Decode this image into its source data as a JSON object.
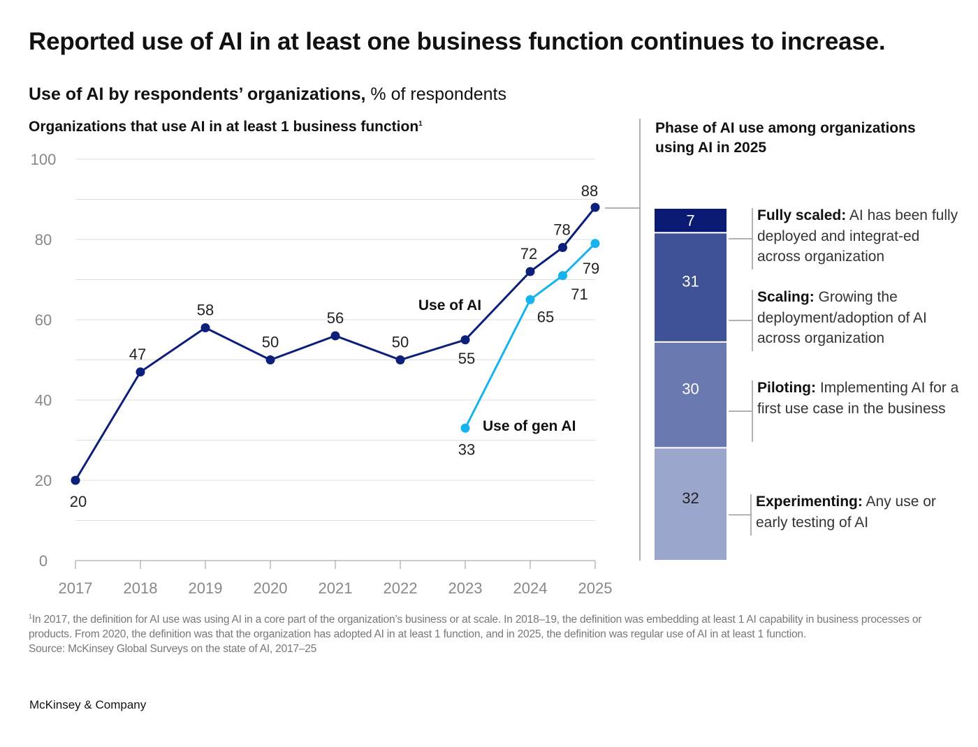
{
  "title": "Reported use of AI in at least one business function continues to increase.",
  "subtitle": {
    "bold": "Use of AI by respondents’ organizations,",
    "regular": " % of respondents"
  },
  "footnote": {
    "marker": "1",
    "text": "In 2017, the definition for AI use was using AI in a core part of the organization’s business or at scale. In 2018–19, the definition was embedding at least 1 AI capability in business processes or products. From 2020, the definition was that the organization has adopted AI in at least 1 function, and in 2025, the definition was regular use of AI in at least 1 function.",
    "source": "Source: McKinsey Global Surveys on the state of AI, 2017–25"
  },
  "brand": "McKinsey & Company",
  "colors": {
    "use_of_ai": "#0c1f7a",
    "use_of_gen_ai": "#16b4ee",
    "grid": "#dddddd"
  },
  "chart_data": [
    {
      "type": "line",
      "title": "Organizations that use AI in at least 1 business function",
      "title_marker": "1",
      "ylim": [
        0,
        100
      ],
      "yticks": [
        "0",
        "20",
        "40",
        "60",
        "80",
        "100"
      ],
      "xticks": [
        "2017",
        "2018",
        "2019",
        "2020",
        "2021",
        "2022",
        "2023",
        "2024",
        "2025"
      ],
      "grid": true,
      "series": [
        {
          "name": "Use of AI",
          "x": [
            2017,
            2018,
            2019,
            2020,
            2021,
            2022,
            2023,
            2024,
            2024.5,
            2025
          ],
          "values": [
            20,
            47,
            58,
            50,
            56,
            50,
            55,
            72,
            78,
            88
          ]
        },
        {
          "name": "Use of gen AI",
          "x": [
            2023,
            2024,
            2024.5,
            2025
          ],
          "values": [
            33,
            65,
            71,
            79
          ]
        }
      ]
    },
    {
      "type": "bar",
      "stacked": true,
      "title": "Phase of AI use among organizations using AI in 2025",
      "segments": [
        {
          "value": 7,
          "label": "Fully scaled:",
          "description": " AI has been fully deployed and integrat-ed across organization",
          "color": "#0a1a73"
        },
        {
          "value": 31,
          "label": "Scaling:",
          "description": " Growing the deployment/adoption of AI across organization",
          "color": "#3f5296"
        },
        {
          "value": 30,
          "label": "Piloting:",
          "description": " Implementing AI for a first use case in the business",
          "color": "#6a7ab0"
        },
        {
          "value": 32,
          "label": "Experimenting:",
          "description": " Any use or early testing of AI",
          "color": "#9aa6cc"
        }
      ]
    }
  ]
}
